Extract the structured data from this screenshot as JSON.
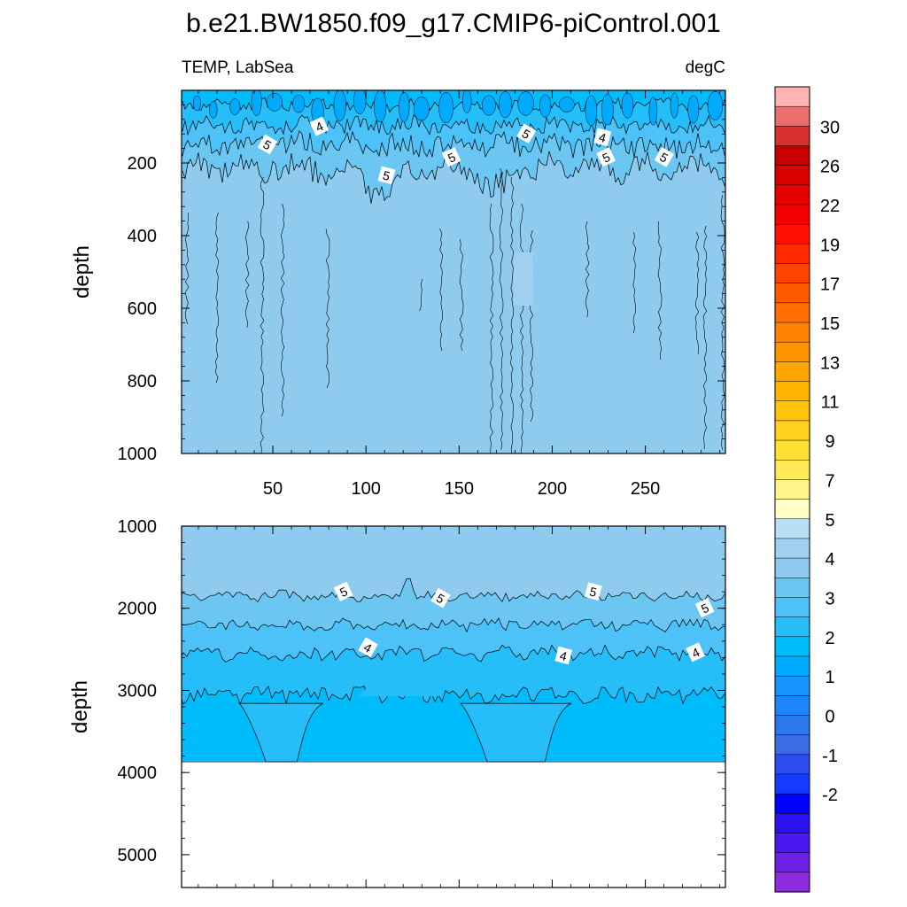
{
  "chart_data": [
    {
      "type": "heatmap",
      "title": "b.e21.BW1850.f09_g17.CMIP6-piControl.001",
      "subtitle_left": "TEMP, LabSea",
      "subtitle_right": "degC",
      "ylabel": "depth",
      "xlabel": "",
      "xlim": [
        1,
        293
      ],
      "ylim": [
        1000,
        0
      ],
      "xticks": [
        50,
        100,
        150,
        200,
        250
      ],
      "xtick_labels": [
        "50",
        "100",
        "150",
        "200",
        "250"
      ],
      "yticks": [
        200,
        400,
        600,
        800,
        1000
      ],
      "ytick_labels": [
        "200",
        "400",
        "600",
        "800",
        "1000"
      ],
      "layers": [
        {
          "value": "3.5-4",
          "top_depth": 0,
          "bottom_depth": 40
        },
        {
          "value": "4-4.5",
          "top_depth": 40,
          "bottom_depth": 95
        },
        {
          "value": "4.5-5",
          "top_depth": 95,
          "bottom_depth": 150
        },
        {
          "value": "5-5.5",
          "top_depth": 150,
          "bottom_depth": 215
        },
        {
          "value": "5.5-6",
          "top_depth": 215,
          "bottom_depth": 1000
        }
      ],
      "contour_labels": [
        {
          "text": "4",
          "x": 75,
          "depth": 100
        },
        {
          "text": "5",
          "x": 47,
          "depth": 150
        },
        {
          "text": "5",
          "x": 111,
          "depth": 235
        },
        {
          "text": "5",
          "x": 146,
          "depth": 185
        },
        {
          "text": "5",
          "x": 186,
          "depth": 120
        },
        {
          "text": "4",
          "x": 227,
          "depth": 130
        },
        {
          "text": "5",
          "x": 229,
          "depth": 185
        },
        {
          "text": "5",
          "x": 260,
          "depth": 185
        }
      ]
    },
    {
      "type": "heatmap",
      "ylabel": "depth",
      "xlabel": "",
      "xlim": [
        1,
        293
      ],
      "ylim": [
        5400,
        1000
      ],
      "yticks": [
        1000,
        2000,
        3000,
        4000,
        5000
      ],
      "ytick_labels": [
        "1000",
        "2000",
        "3000",
        "4000",
        "5000"
      ],
      "ocean_bottom_depth": 3870,
      "layers": [
        {
          "value": "5.5-6",
          "top_depth": 1000,
          "bottom_depth": 1850
        },
        {
          "value": "5-5.5",
          "top_depth": 1850,
          "bottom_depth": 2200
        },
        {
          "value": "4.5-5",
          "top_depth": 2200,
          "bottom_depth": 2550
        },
        {
          "value": "4-4.5",
          "top_depth": 2550,
          "bottom_depth": 3050
        },
        {
          "value": "3.5-4",
          "top_depth": 3050,
          "bottom_depth": 3870
        }
      ],
      "contour_labels": [
        {
          "text": "5",
          "x": 88,
          "depth": 1800
        },
        {
          "text": "5",
          "x": 140,
          "depth": 1880
        },
        {
          "text": "5",
          "x": 222,
          "depth": 1800
        },
        {
          "text": "5",
          "x": 282,
          "depth": 2000
        },
        {
          "text": "4",
          "x": 101,
          "depth": 2480
        },
        {
          "text": "4",
          "x": 206,
          "depth": 2580
        },
        {
          "text": "4",
          "x": 277,
          "depth": 2540
        }
      ]
    },
    {
      "type": "colorbar",
      "levels": [
        -2.5,
        -2,
        -1.5,
        -1,
        -0.5,
        0,
        0.5,
        1,
        1.5,
        2,
        2.5,
        3,
        3.5,
        4,
        4.5,
        5,
        5.5,
        6,
        6.5,
        7,
        8,
        9,
        10,
        11,
        12,
        13,
        14,
        15,
        16,
        17,
        18,
        19,
        20,
        21,
        22,
        24,
        26,
        28,
        30,
        32
      ],
      "labels": [
        "-2",
        "-1",
        "0",
        "1",
        "2",
        "3",
        "4",
        "5",
        "7",
        "9",
        "11",
        "13",
        "15",
        "17",
        "19",
        "22",
        "26",
        "30"
      ],
      "colors": [
        "#ffb3b3",
        "#ea6e6e",
        "#d73030",
        "#c80000",
        "#d80000",
        "#e60000",
        "#f40000",
        "#ff0f00",
        "#ff2a00",
        "#ff4400",
        "#ff5a00",
        "#ff6e00",
        "#ff8200",
        "#ff9400",
        "#ffa600",
        "#ffb400",
        "#ffc40a",
        "#ffd21e",
        "#ffe032",
        "#ffeb5a",
        "#fff48c",
        "#ffffc8",
        "#b8e0f5",
        "#a0d2f0",
        "#8ecbef",
        "#6cc6f2",
        "#4cc2f8",
        "#26bef8",
        "#00bcfb",
        "#00abff",
        "#1795fe",
        "#1e85fd",
        "#2b78ee",
        "#3d6be2",
        "#2c4cf0",
        "#143bff",
        "#0000ff",
        "#2c10f0",
        "#4d17f0",
        "#6e1fe6",
        "#8c2be0"
      ]
    }
  ]
}
